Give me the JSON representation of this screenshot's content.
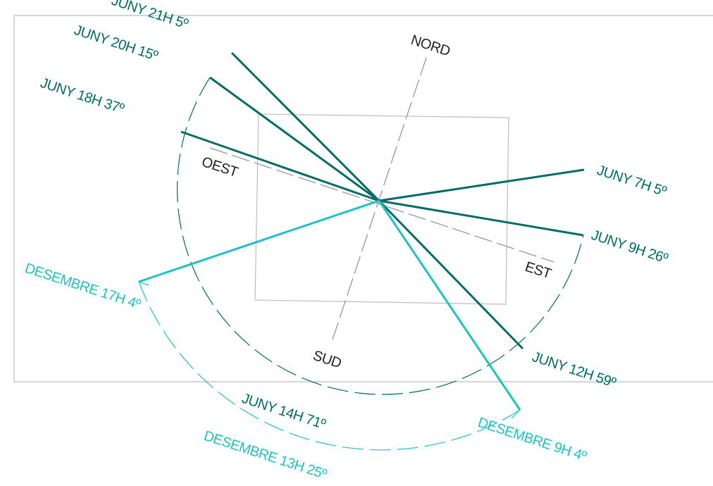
{
  "colors": {
    "summer": "#006c68",
    "winter": "#1fc2c2",
    "frame": "#bdbdbd",
    "axis": "#8f8f8f",
    "text_dark": "#222222"
  },
  "compass": {
    "north": "NORD",
    "south": "SUD",
    "east": "EST",
    "west": "OEST"
  },
  "sun_rays": {
    "junio": [
      {
        "label": "JUNY 7H 5º"
      },
      {
        "label": "JUNY 9H 26º"
      },
      {
        "label": "JUNY 12H 59º"
      },
      {
        "label": "JUNY 14H 71º"
      },
      {
        "label": "JUNY 18H 37º"
      },
      {
        "label": "JUNY 20H 15º"
      },
      {
        "label": "JUNY 21H 5º"
      }
    ],
    "desembre": [
      {
        "label": "DESEMBRE 9H 4º"
      },
      {
        "label": "DESEMBRE 13H 25º"
      },
      {
        "label": "DESEMBRE 17H 4º"
      }
    ]
  }
}
